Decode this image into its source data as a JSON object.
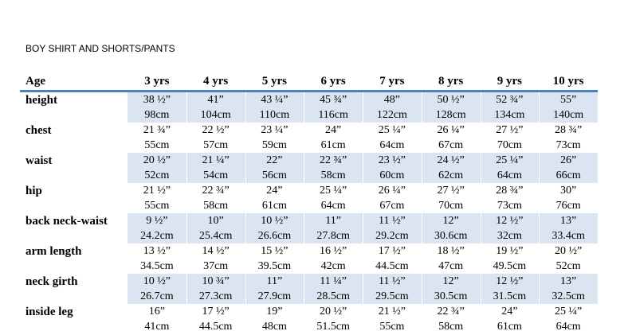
{
  "title": "BOY SHIRT AND SHORTS/PANTS",
  "table": {
    "header": [
      "Age",
      "3 yrs",
      "4 yrs",
      "5 yrs",
      "6 yrs",
      "7 yrs",
      "8 yrs",
      "9 yrs",
      "10 yrs"
    ],
    "rows": [
      {
        "label": "height",
        "inches": [
          "38 ½”",
          "41”",
          "43 ¼”",
          "45 ¾”",
          "48”",
          "50 ½”",
          "52 ¾”",
          "55”"
        ],
        "cm": [
          "98cm",
          "104cm",
          "110cm",
          "116cm",
          "122cm",
          "128cm",
          "134cm",
          "140cm"
        ]
      },
      {
        "label": "chest",
        "inches": [
          "21 ¾”",
          "22 ½”",
          "23 ¼”",
          "24”",
          "25 ¼”",
          "26 ¼”",
          "27 ½”",
          "28 ¾”"
        ],
        "cm": [
          "55cm",
          "57cm",
          "59cm",
          "61cm",
          "64cm",
          "67cm",
          "70cm",
          "73cm"
        ]
      },
      {
        "label": "waist",
        "inches": [
          "20 ½”",
          "21 ¼”",
          "22”",
          "22 ¾”",
          "23 ½”",
          "24 ½”",
          "25 ¼”",
          "26”"
        ],
        "cm": [
          "52cm",
          "54cm",
          "56cm",
          "58cm",
          "60cm",
          "62cm",
          "64cm",
          "66cm"
        ]
      },
      {
        "label": "hip",
        "inches": [
          "21 ½”",
          "22 ¾”",
          "24”",
          "25 ¼”",
          "26 ¼”",
          "27 ½”",
          "28 ¾”",
          "30”"
        ],
        "cm": [
          "55cm",
          "58cm",
          "61cm",
          "64cm",
          "67cm",
          "70cm",
          "73cm",
          "76cm"
        ]
      },
      {
        "label": "back neck-waist",
        "inches": [
          "9 ½”",
          "10”",
          "10 ½”",
          "11”",
          "11 ½”",
          "12”",
          "12 ½”",
          "13”"
        ],
        "cm": [
          "24.2cm",
          "25.4cm",
          "26.6cm",
          "27.8cm",
          "29.2cm",
          "30.6cm",
          "32cm",
          "33.4cm"
        ]
      },
      {
        "label": "arm length",
        "inches": [
          "13 ½”",
          "14 ½”",
          "15 ½”",
          "16 ½”",
          "17 ½”",
          "18 ½”",
          "19 ½”",
          "20 ½”"
        ],
        "cm": [
          "34.5cm",
          "37cm",
          "39.5cm",
          "42cm",
          "44.5cm",
          "47cm",
          "49.5cm",
          "52cm"
        ]
      },
      {
        "label": "neck girth",
        "inches": [
          "10 ½”",
          "10 ¾”",
          "11”",
          "11 ¼”",
          "11 ½”",
          "12”",
          "12 ½”",
          "13”"
        ],
        "cm": [
          "26.7cm",
          "27.3cm",
          "27.9cm",
          "28.5cm",
          "29.5cm",
          "30.5cm",
          "31.5cm",
          "32.5cm"
        ]
      },
      {
        "label": "inside leg",
        "inches": [
          "16”",
          "17 ½”",
          "19”",
          "20 ½”",
          "21 ½”",
          "22 ¾”",
          "24”",
          "25 ¼”"
        ],
        "cm": [
          "41cm",
          "44.5cm",
          "48cm",
          "51.5cm",
          "55cm",
          "58cm",
          "61cm",
          "64cm"
        ]
      }
    ]
  }
}
